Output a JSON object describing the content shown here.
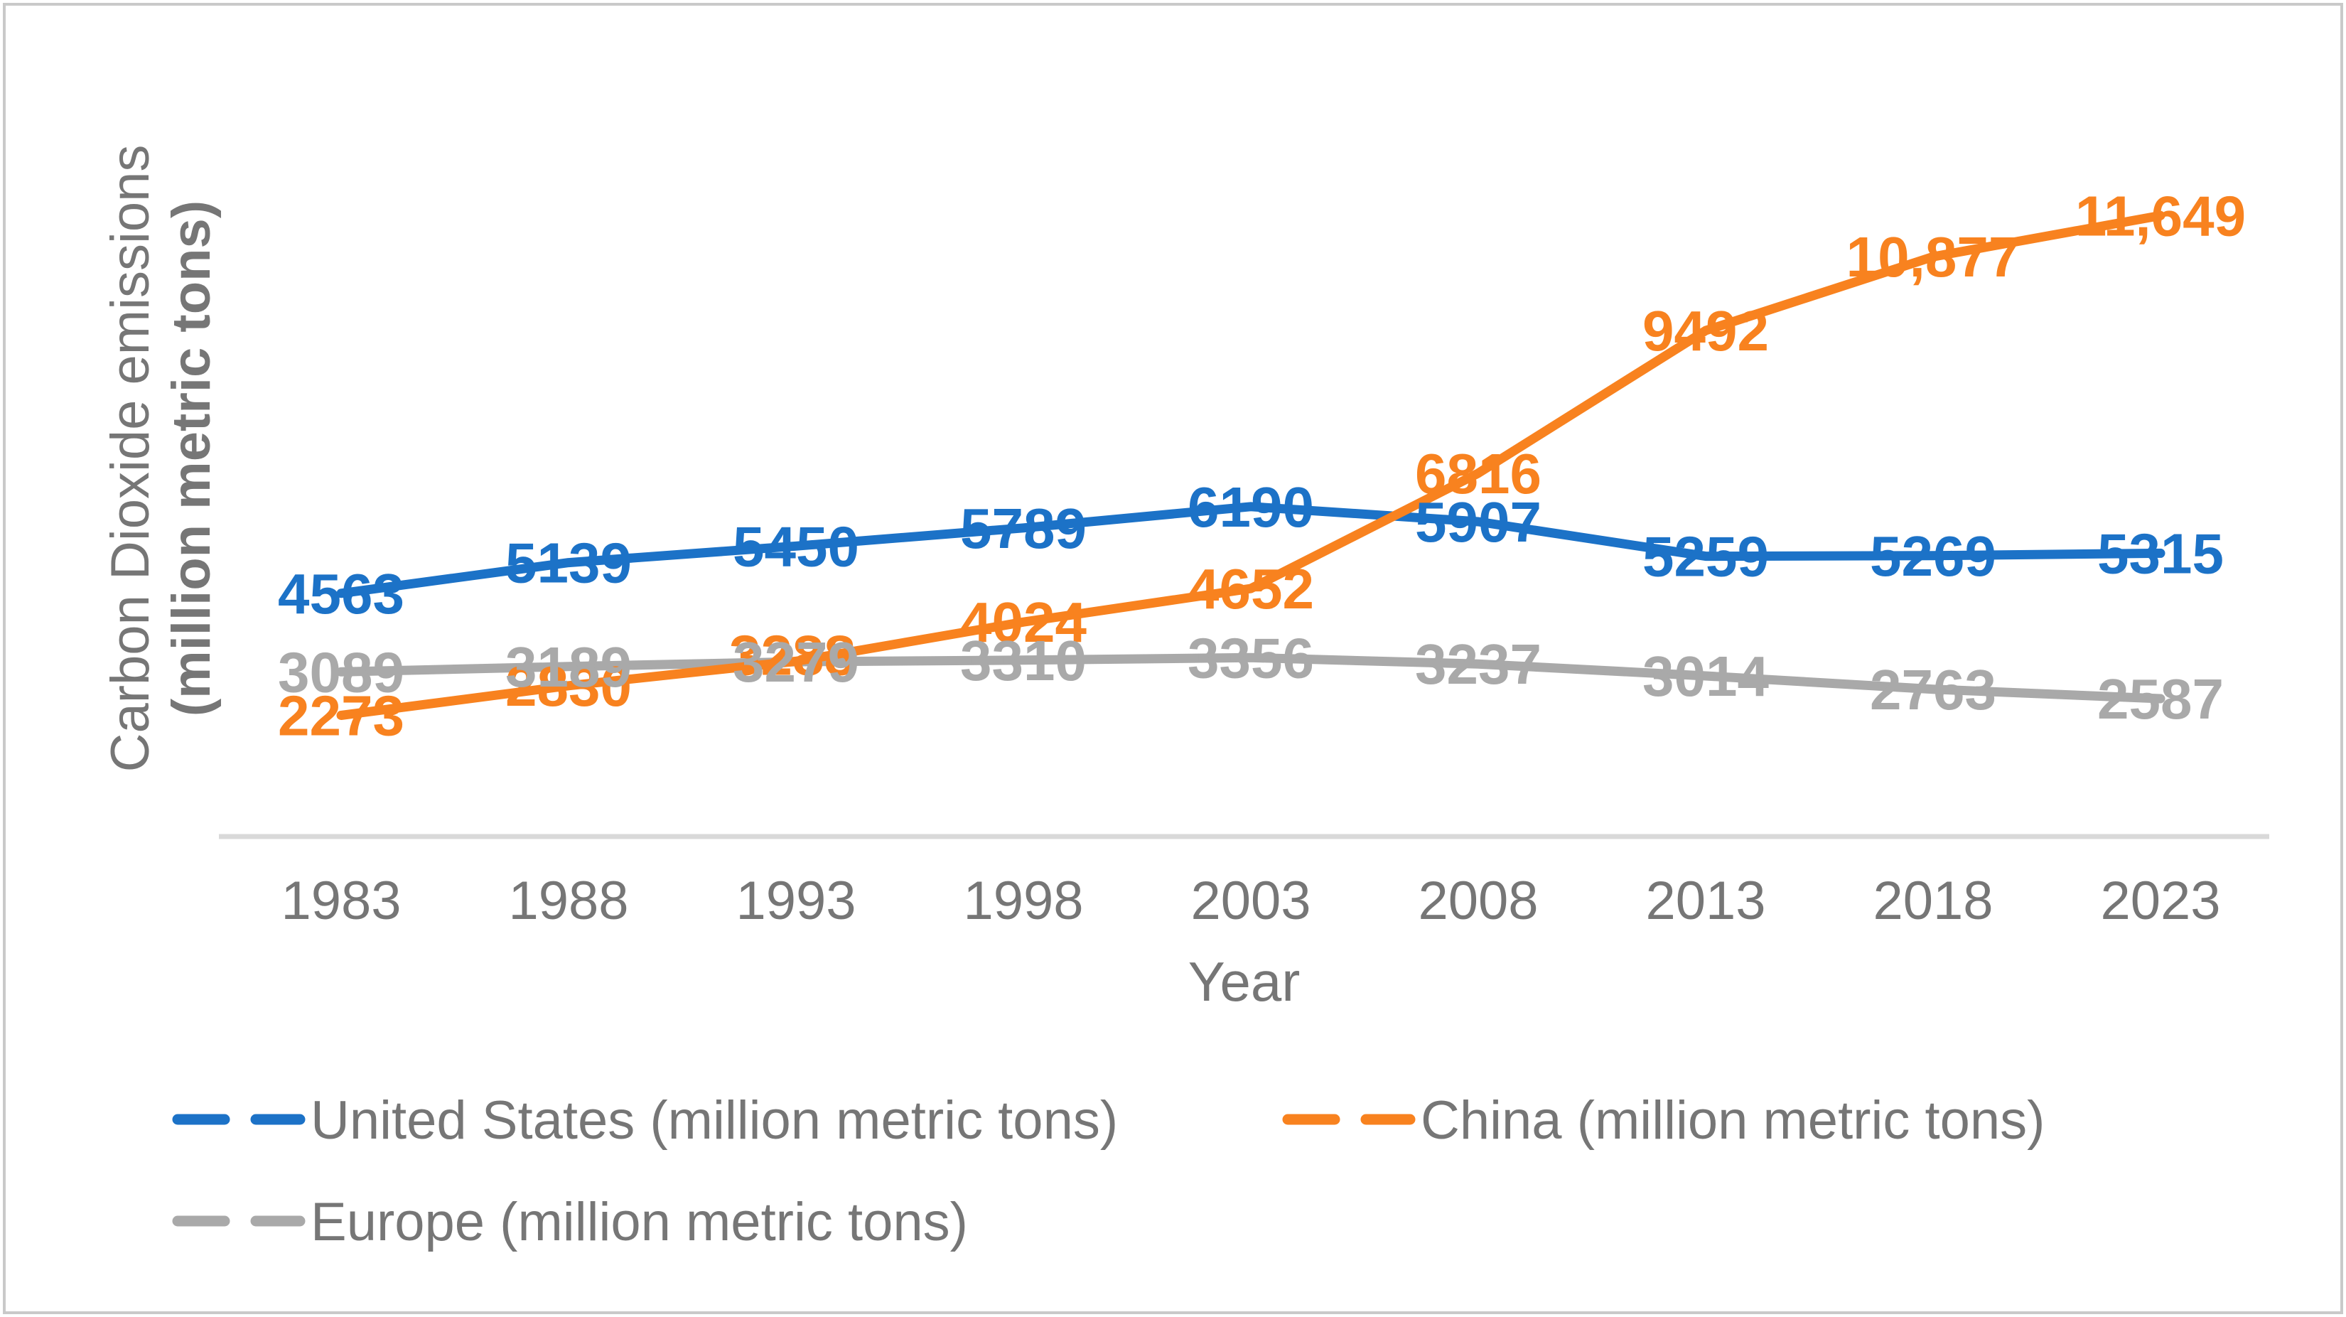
{
  "chart_data": {
    "type": "line",
    "title": "",
    "xlabel": "Year",
    "ylabel_line1": "Carbon Dioxide emissions",
    "ylabel_line2": "(million metric tons)",
    "categories": [
      "1983",
      "1988",
      "1993",
      "1998",
      "2003",
      "2008",
      "2013",
      "2018",
      "2023"
    ],
    "series": [
      {
        "key": "united-states",
        "name": "United States (million metric tons)",
        "color": "#1C72C7",
        "values": [
          4563,
          5139,
          5450,
          5789,
          6190,
          5907,
          5259,
          5269,
          5315
        ],
        "labels": [
          "4563",
          "5139",
          "5450",
          "5789",
          "6190",
          "5907",
          "5259",
          "5269",
          "5315"
        ]
      },
      {
        "key": "china",
        "name": "China (million metric tons)",
        "color": "#F8821F",
        "values": [
          2273,
          2830,
          3288,
          4024,
          4652,
          6816,
          9492,
          10877,
          11649
        ],
        "labels": [
          "2273",
          "2830",
          "3288",
          "4024",
          "4652",
          "6816",
          "9492",
          "10,877",
          "11,649"
        ]
      },
      {
        "key": "europe",
        "name": "Europe (million metric tons)",
        "color": "#A9A9A9",
        "values": [
          3089,
          3189,
          3279,
          3310,
          3356,
          3237,
          3014,
          2763,
          2587
        ],
        "labels": [
          "3089",
          "3189",
          "3279",
          "3310",
          "3356",
          "3237",
          "3014",
          "2763",
          "2587"
        ]
      }
    ],
    "ylim": [
      0,
      15700
    ],
    "grid": false,
    "axis_line_color": "#D9D9D9",
    "text_color": "#767676",
    "legend_position": "bottom",
    "line_draw_order": [
      0,
      2,
      1
    ],
    "label_draw_order": [
      1,
      2,
      0
    ],
    "label_offsets": {
      "china|1993": [
        -5,
        -9
      ]
    }
  }
}
